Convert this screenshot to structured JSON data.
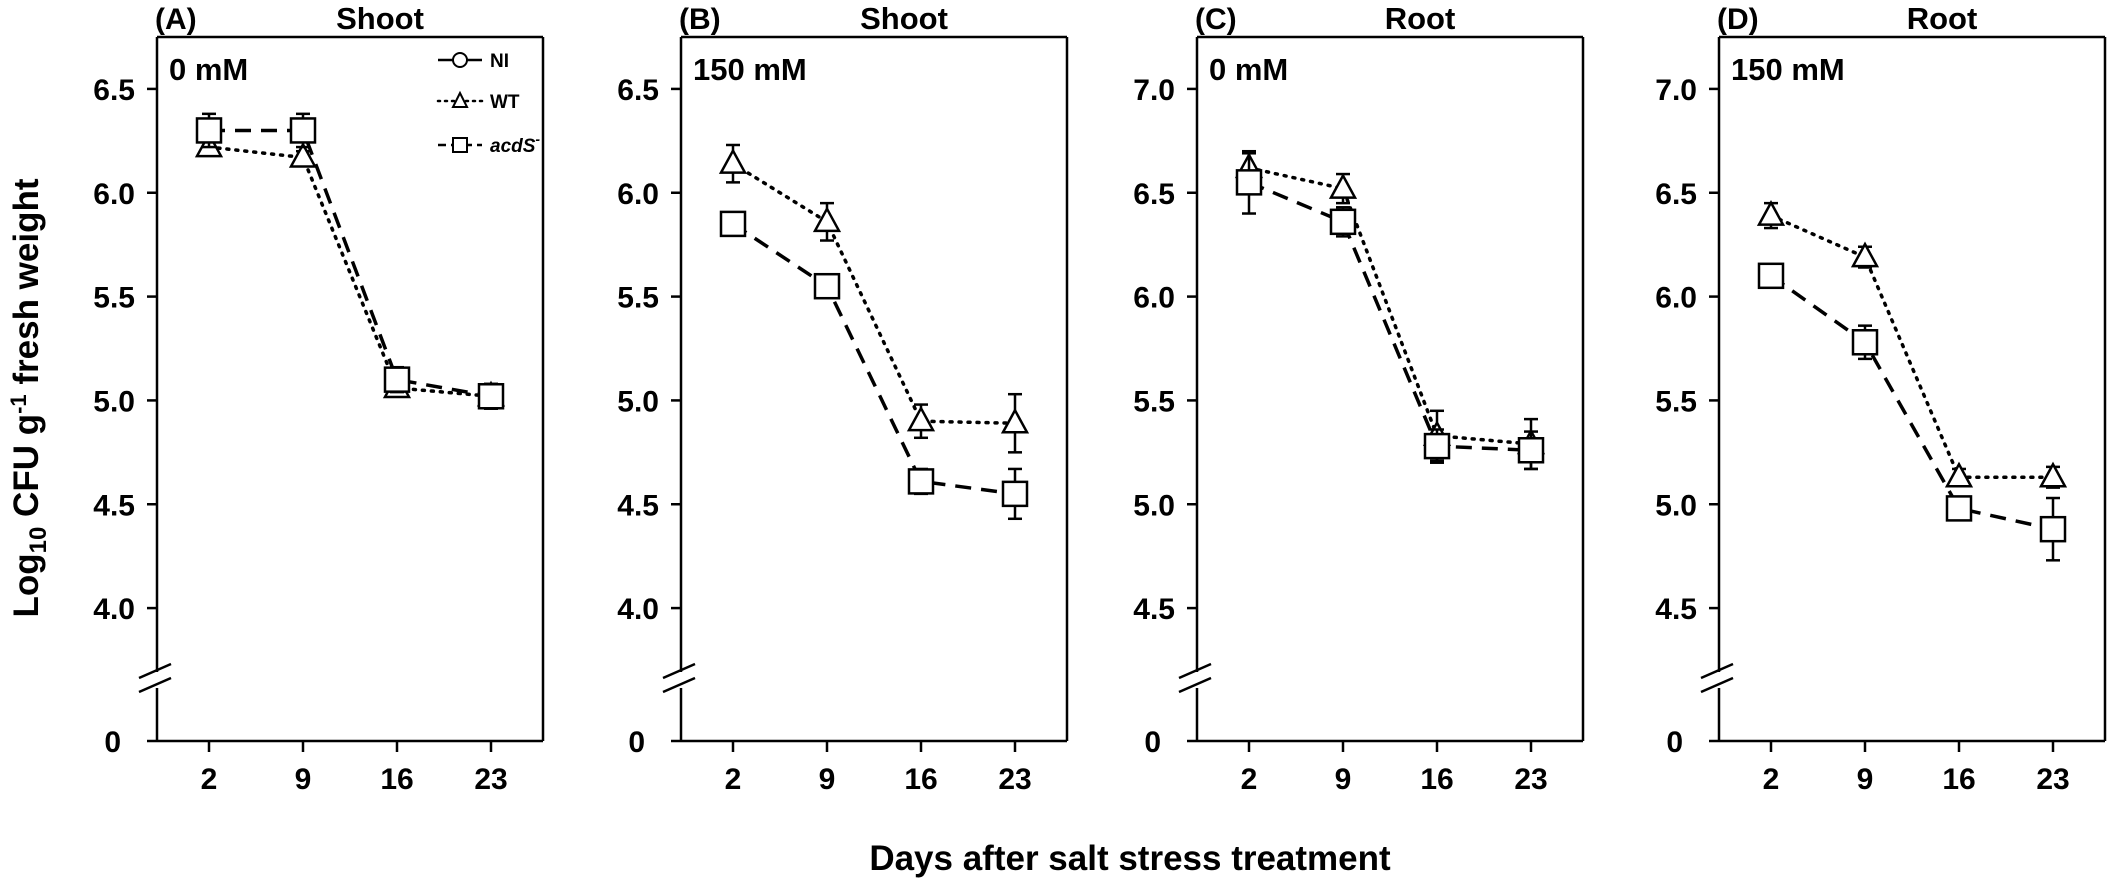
{
  "figure": {
    "ylabel": "Log10 CFU g-1 fresh weight",
    "ylabel_parts": {
      "main": "Log",
      "sub": "10",
      "mid": " CFU g",
      "sup": "-1",
      "end": " fresh weight"
    },
    "xlabel": "Days after salt stress treatment"
  },
  "legend": {
    "placement": "top-right of panel A",
    "items": [
      {
        "name": "NI",
        "marker": "circle",
        "line": "solid"
      },
      {
        "name": "WT",
        "marker": "triangle",
        "line": "dotted"
      },
      {
        "name": "acdS-",
        "name_base": "acdS",
        "name_sup": "-",
        "marker": "square",
        "line": "dashed"
      }
    ]
  },
  "chart_data": [
    {
      "type": "line",
      "panel": "(A)",
      "title": "Shoot",
      "condition": "0 mM",
      "x": [
        2,
        9,
        16,
        23
      ],
      "x_tick_labels": [
        "2",
        "9",
        "16",
        "23"
      ],
      "ylim": [
        3.75,
        6.75
      ],
      "y_ticks": [
        4.0,
        4.5,
        5.0,
        5.5,
        6.0,
        6.5
      ],
      "y_tick_labels": [
        "4.0",
        "4.5",
        "5.0",
        "5.5",
        "6.0",
        "6.5"
      ],
      "y_break": true,
      "y_break_label": "0",
      "series": [
        {
          "name": "WT",
          "marker": "triangle",
          "line": "dotted",
          "values": [
            6.22,
            6.17,
            5.06,
            5.02
          ],
          "errors": [
            0.03,
            0.03,
            0.04,
            0.03
          ]
        },
        {
          "name": "acdS-",
          "marker": "square",
          "line": "dashed",
          "values": [
            6.3,
            6.3,
            5.1,
            5.02
          ],
          "errors": [
            0.08,
            0.08,
            0.06,
            0.06
          ]
        }
      ]
    },
    {
      "type": "line",
      "panel": "(B)",
      "title": "Shoot",
      "condition": "150 mM",
      "x": [
        2,
        9,
        16,
        23
      ],
      "x_tick_labels": [
        "2",
        "9",
        "16",
        "23"
      ],
      "ylim": [
        3.75,
        6.75
      ],
      "y_ticks": [
        4.0,
        4.5,
        5.0,
        5.5,
        6.0,
        6.5
      ],
      "y_tick_labels": [
        "4.0",
        "4.5",
        "5.0",
        "5.5",
        "6.0",
        "6.5"
      ],
      "y_break": true,
      "y_break_label": "0",
      "series": [
        {
          "name": "WT",
          "marker": "triangle",
          "line": "dotted",
          "values": [
            6.14,
            5.86,
            4.9,
            4.89
          ],
          "errors": [
            0.09,
            0.09,
            0.08,
            0.14
          ]
        },
        {
          "name": "acdS-",
          "marker": "square",
          "line": "dashed",
          "values": [
            5.85,
            5.55,
            4.61,
            4.55
          ],
          "errors": [
            0.05,
            0.05,
            0.06,
            0.12
          ]
        }
      ]
    },
    {
      "type": "line",
      "panel": "(C)",
      "title": "Root",
      "condition": "0 mM",
      "x": [
        2,
        9,
        16,
        23
      ],
      "x_tick_labels": [
        "2",
        "9",
        "16",
        "23"
      ],
      "ylim": [
        4.25,
        7.25
      ],
      "y_ticks": [
        4.5,
        5.0,
        5.5,
        6.0,
        6.5,
        7.0
      ],
      "y_tick_labels": [
        "4.5",
        "5.0",
        "5.5",
        "6.0",
        "6.5",
        "7.0"
      ],
      "y_break": true,
      "y_break_label": "0",
      "series": [
        {
          "name": "WT",
          "marker": "triangle",
          "line": "dotted",
          "values": [
            6.62,
            6.52,
            5.33,
            5.29
          ],
          "errors": [
            0.07,
            0.07,
            0.12,
            0.12
          ]
        },
        {
          "name": "acdS-",
          "marker": "square",
          "line": "dashed",
          "values": [
            6.55,
            6.36,
            5.28,
            5.26
          ],
          "errors": [
            0.15,
            0.07,
            0.08,
            0.09
          ]
        }
      ]
    },
    {
      "type": "line",
      "panel": "(D)",
      "title": "Root",
      "condition": "150 mM",
      "x": [
        2,
        9,
        16,
        23
      ],
      "x_tick_labels": [
        "2",
        "9",
        "16",
        "23"
      ],
      "ylim": [
        4.25,
        7.25
      ],
      "y_ticks": [
        4.5,
        5.0,
        5.5,
        6.0,
        6.5,
        7.0
      ],
      "y_tick_labels": [
        "4.5",
        "5.0",
        "5.5",
        "6.0",
        "6.5",
        "7.0"
      ],
      "y_break": true,
      "y_break_label": "0",
      "series": [
        {
          "name": "WT",
          "marker": "triangle",
          "line": "dotted",
          "values": [
            6.39,
            6.19,
            5.13,
            5.13
          ],
          "errors": [
            0.06,
            0.05,
            0.04,
            0.05
          ]
        },
        {
          "name": "acdS-",
          "marker": "square",
          "line": "dashed",
          "values": [
            6.1,
            5.78,
            4.98,
            4.88
          ],
          "errors": [
            0.05,
            0.08,
            0.03,
            0.15
          ]
        }
      ]
    }
  ]
}
